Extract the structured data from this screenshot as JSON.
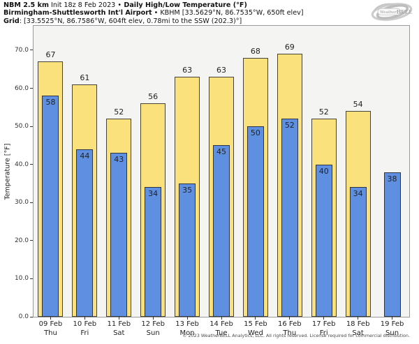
{
  "header": {
    "model": "NBM 2.5 km",
    "init": " Init 18z 8 Feb 2023 ",
    "bullet1": "•",
    "product": " Daily High/Low Temperature (°F)",
    "station_name": "Birmingham-Shuttlesworth Int'l Airport",
    "bullet2": "•",
    "station_details": " KBHM [33.5629°N, 86.7535°W, 650ft elev]",
    "grid_label": "Grid",
    "grid_details": ": [33.5525°N, 86.7586°W, 604ft elev, 0.78mi to the SSW (202.3)°]"
  },
  "logo": {
    "weather": "Weather",
    "bell": "BELL"
  },
  "chart_data": {
    "type": "bar",
    "title": "NBM 2.5 km Daily High/Low Temperature (°F) — KBHM Birmingham-Shuttlesworth Int'l Airport",
    "xlabel": "",
    "ylabel": "Temperature [°F]",
    "ylim": [
      0,
      76.4
    ],
    "yticks": [
      0,
      10,
      20,
      30,
      40,
      50,
      60,
      70
    ],
    "ytick_labels": [
      "0.0",
      "10.0",
      "20.0",
      "30.0",
      "40.0",
      "50.0",
      "60.0",
      "70.0"
    ],
    "grid": false,
    "legend": "none",
    "plot_bg": "#f4f4f2",
    "categories": [
      {
        "date": "09 Feb",
        "day": "Thu"
      },
      {
        "date": "10 Feb",
        "day": "Fri"
      },
      {
        "date": "11 Feb",
        "day": "Sat"
      },
      {
        "date": "12 Feb",
        "day": "Sun"
      },
      {
        "date": "13 Feb",
        "day": "Mon"
      },
      {
        "date": "14 Feb",
        "day": "Tue"
      },
      {
        "date": "15 Feb",
        "day": "Wed"
      },
      {
        "date": "16 Feb",
        "day": "Thu"
      },
      {
        "date": "17 Feb",
        "day": "Fri"
      },
      {
        "date": "18 Feb",
        "day": "Sat"
      },
      {
        "date": "19 Feb",
        "day": "Sun"
      }
    ],
    "series": [
      {
        "name": "Daily High",
        "color": "#fbe17b",
        "values": [
          67,
          61,
          52,
          56,
          63,
          63,
          68,
          69,
          52,
          54,
          null
        ]
      },
      {
        "name": "Daily Low",
        "color": "#5f8fe0",
        "values": [
          58,
          44,
          43,
          34,
          35,
          45,
          50,
          52,
          40,
          34,
          38
        ]
      }
    ]
  },
  "footer": {
    "copyright": "© 2023 WeatherBELL Analytics, LLC. All rights reserved. License required for commercial distribution."
  }
}
